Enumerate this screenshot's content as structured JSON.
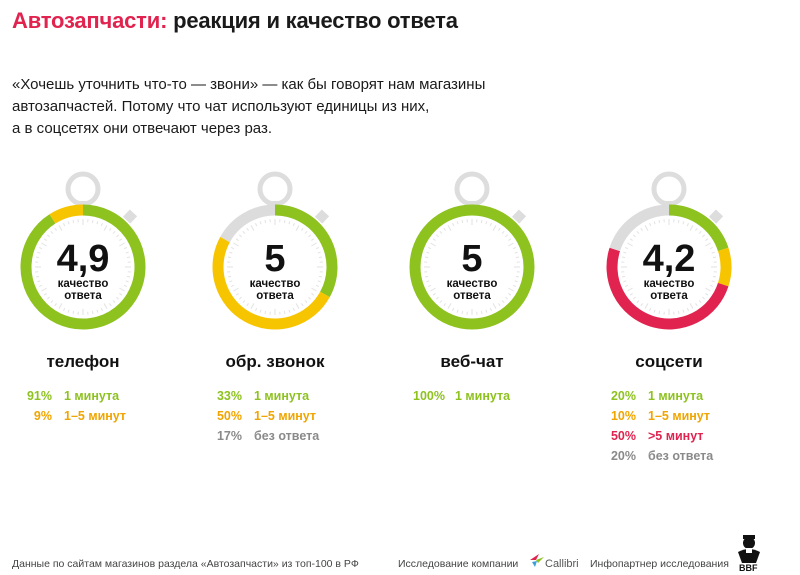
{
  "header": {
    "title_accent": "Автозапчасти:",
    "title_rest": "реакция и качество ответа"
  },
  "intro": {
    "line1": "«Хочешь уточнить что-то — звони» — как бы говорят нам магазины",
    "line2": "автозапчастей. Потому что чат используют единицы из них,",
    "line3": "а в соцсетях они отвечают через раз."
  },
  "colors": {
    "green": "#8dc21f",
    "yellow": "#f7c400",
    "red": "#e0234f",
    "gray": "#a8a8a8",
    "track": "#dcdcdc",
    "title_accent": "#e0234f"
  },
  "chart_data": {
    "type": "pie",
    "rating_label": "качество ответа",
    "charts": [
      {
        "name": "телефон",
        "rating": "4,9",
        "segments": [
          {
            "label": "1 минута",
            "pct_text": "91%",
            "value": 91,
            "color": "#8dc21f"
          },
          {
            "label": "1–5 минут",
            "pct_text": "9%",
            "value": 9,
            "color": "#f7c400"
          }
        ]
      },
      {
        "name": "обр. звонок",
        "rating": "5",
        "segments": [
          {
            "label": "1 минута",
            "pct_text": "33%",
            "value": 33,
            "color": "#8dc21f"
          },
          {
            "label": "1–5 минут",
            "pct_text": "50%",
            "value": 50,
            "color": "#f7c400"
          },
          {
            "label": "без ответа",
            "pct_text": "17%",
            "value": 17,
            "color": "#dcdcdc"
          }
        ]
      },
      {
        "name": "веб-чат",
        "rating": "5",
        "segments": [
          {
            "label": "1 минута",
            "pct_text": "100%",
            "value": 100,
            "color": "#8dc21f"
          }
        ]
      },
      {
        "name": "соцсети",
        "rating": "4,2",
        "segments": [
          {
            "label": "1 минута",
            "pct_text": "20%",
            "value": 20,
            "color": "#8dc21f"
          },
          {
            "label": "1–5 минут",
            "pct_text": "10%",
            "value": 10,
            "color": "#f7c400"
          },
          {
            "label": ">5 минут",
            "pct_text": "50%",
            "value": 50,
            "color": "#e0234f"
          },
          {
            "label": "без ответа",
            "pct_text": "20%",
            "value": 20,
            "color": "#dcdcdc"
          }
        ]
      }
    ]
  },
  "legend_text_colors": {
    "1 минута": "#8dc21f",
    "1–5 минут": "#f0a500",
    ">5 минут": "#e0234f",
    "без ответа": "#8a8a8a"
  },
  "footer": {
    "source": "Данные по сайтам магазинов раздела «Автозапчасти» из топ-100 в РФ",
    "research_by": "Исследование компании",
    "company": "Callibri",
    "partner": "Инфопартнер исследования",
    "partner_logo": "BBF"
  }
}
